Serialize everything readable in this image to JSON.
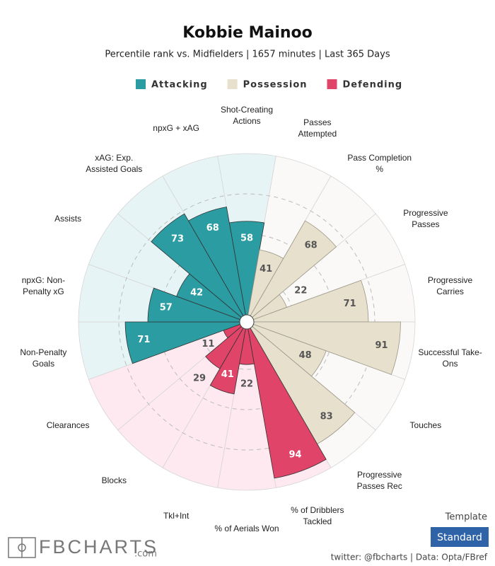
{
  "chart_data": {
    "type": "pizza",
    "title": "Kobbie Mainoo",
    "subtitle": "Percentile rank vs. Midfielders | 1657 minutes | Last 365 Days",
    "categories": [
      "Shot-Creating Actions",
      "Passes Attempted",
      "Pass Completion %",
      "Progressive Passes",
      "Progressive Carries",
      "Successful Take-Ons",
      "Touches",
      "Progressive Passes Rec",
      "% of Dribblers Tackled",
      "% of Aerials Won",
      "Tkl+Int",
      "Blocks",
      "Clearances",
      "Non-Penalty Goals",
      "npxG: Non-Penalty xG",
      "Assists",
      "xAG: Exp. Assisted Goals",
      "npxG + xAG"
    ],
    "series": [
      {
        "name": "Attacking",
        "color": "#2a9ca2",
        "background": "#e7f4f5",
        "values": [
          58,
          null,
          null,
          null,
          null,
          null,
          null,
          null,
          null,
          null,
          null,
          null,
          null,
          71,
          57,
          42,
          73,
          68
        ]
      },
      {
        "name": "Possession",
        "color": "#e6e0cc",
        "background": "#faf9f7",
        "values": [
          null,
          41,
          68,
          22,
          71,
          91,
          48,
          83,
          null,
          null,
          null,
          null,
          null,
          null,
          null,
          null,
          null,
          null
        ]
      },
      {
        "name": "Defending",
        "color": "#e04468",
        "background": "#fde9ef",
        "values": [
          null,
          null,
          null,
          null,
          null,
          null,
          null,
          null,
          94,
          22,
          41,
          29,
          11,
          null,
          null,
          null,
          null,
          null
        ]
      }
    ],
    "rlim": [
      0,
      100
    ],
    "rticks": [
      25,
      50,
      75
    ],
    "template_label": "Template",
    "template": "Standard",
    "credit": "twitter: @fbcharts | Data: Opta/FBref",
    "logo": "FBCHARTS",
    "logo_suffix": ".com"
  }
}
